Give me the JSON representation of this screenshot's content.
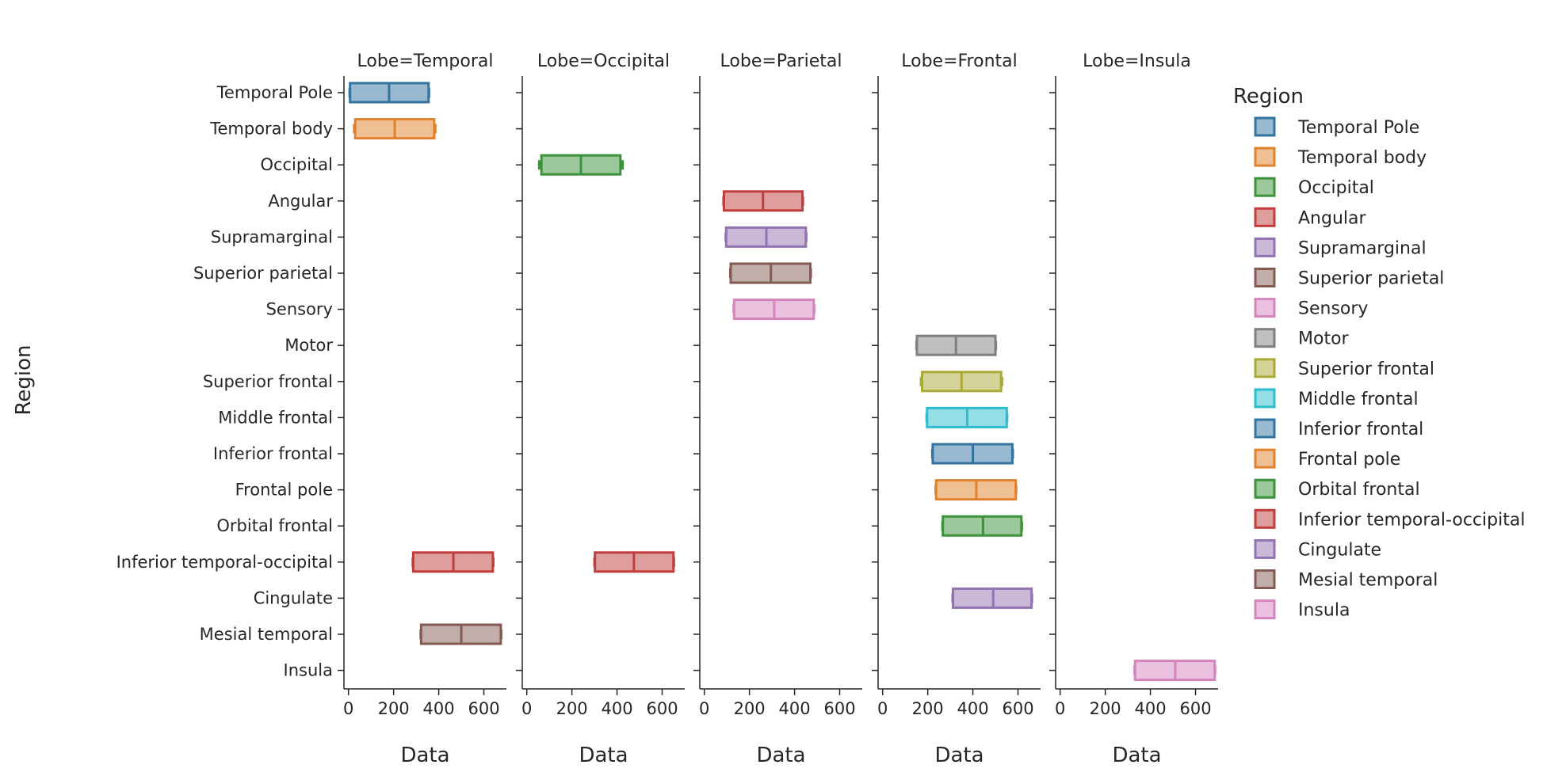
{
  "chart_data": {
    "type": "boxplot-faceted",
    "facet_prefix": "Lobe=",
    "xlabel": "Data",
    "ylabel": "Region",
    "xlim": [
      -20,
      700
    ],
    "xticks": [
      0,
      200,
      400,
      600
    ],
    "legend": {
      "title": "Region",
      "placement": "right"
    },
    "categories": [
      "Temporal Pole",
      "Temporal body",
      "Occipital",
      "Angular",
      "Supramarginal",
      "Superior parietal",
      "Sensory",
      "Motor",
      "Superior frontal ",
      "Middle frontal",
      "Inferior frontal",
      "Frontal pole",
      "Orbital frontal",
      "Inferior temporal-occipital ",
      "Cingulate",
      "Mesial temporal",
      "Insula"
    ],
    "legend_labels": [
      "Temporal Pole",
      "Temporal body",
      "Occipital",
      "Angular",
      "Supramarginal",
      "Superior parietal",
      "Sensory",
      "Motor",
      "Superior frontal",
      "Middle frontal",
      "Inferior frontal",
      "Frontal pole",
      "Orbital frontal",
      "Inferior temporal-occipital",
      "Cingulate",
      "Mesial temporal",
      "Insula"
    ],
    "colors": [
      "#3274a1",
      "#e1812c",
      "#3a923a",
      "#c03d3e",
      "#9372b2",
      "#845b53",
      "#d684bd",
      "#7f7f7f",
      "#a9aa35",
      "#2ebdcc",
      "#3274a1",
      "#e1812c",
      "#3a923a",
      "#c03d3e",
      "#9372b2",
      "#845b53",
      "#d684bd"
    ],
    "panels": [
      {
        "lobe": "Temporal",
        "boxes": [
          {
            "region": 0,
            "min": 5,
            "q1": 7,
            "median": 180,
            "q3": 355,
            "max": 357
          },
          {
            "region": 1,
            "min": 25,
            "q1": 30,
            "median": 205,
            "q3": 380,
            "max": 385
          },
          {
            "region": 13,
            "min": 285,
            "q1": 287,
            "median": 465,
            "q3": 640,
            "max": 642
          },
          {
            "region": 15,
            "min": 320,
            "q1": 322,
            "median": 500,
            "q3": 675,
            "max": 677
          }
        ]
      },
      {
        "lobe": "Occipital",
        "boxes": [
          {
            "region": 2,
            "min": 55,
            "q1": 65,
            "median": 240,
            "q3": 415,
            "max": 425
          },
          {
            "region": 13,
            "min": 300,
            "q1": 302,
            "median": 475,
            "q3": 650,
            "max": 652
          }
        ]
      },
      {
        "lobe": "Parietal",
        "boxes": [
          {
            "region": 3,
            "min": 85,
            "q1": 87,
            "median": 260,
            "q3": 435,
            "max": 437
          },
          {
            "region": 4,
            "min": 95,
            "q1": 97,
            "median": 275,
            "q3": 450,
            "max": 452
          },
          {
            "region": 5,
            "min": 115,
            "q1": 117,
            "median": 295,
            "q3": 470,
            "max": 472
          },
          {
            "region": 6,
            "min": 130,
            "q1": 132,
            "median": 310,
            "q3": 485,
            "max": 487
          }
        ]
      },
      {
        "lobe": "Frontal",
        "boxes": [
          {
            "region": 7,
            "min": 150,
            "q1": 152,
            "median": 325,
            "q3": 500,
            "max": 502
          },
          {
            "region": 8,
            "min": 170,
            "q1": 175,
            "median": 350,
            "q3": 525,
            "max": 530
          },
          {
            "region": 9,
            "min": 195,
            "q1": 197,
            "median": 375,
            "q3": 550,
            "max": 552
          },
          {
            "region": 10,
            "min": 220,
            "q1": 222,
            "median": 400,
            "q3": 575,
            "max": 577
          },
          {
            "region": 11,
            "min": 235,
            "q1": 237,
            "median": 415,
            "q3": 590,
            "max": 592
          },
          {
            "region": 12,
            "min": 265,
            "q1": 267,
            "median": 445,
            "q3": 615,
            "max": 617
          },
          {
            "region": 14,
            "min": 310,
            "q1": 312,
            "median": 490,
            "q3": 660,
            "max": 662
          }
        ]
      },
      {
        "lobe": "Insula",
        "boxes": [
          {
            "region": 16,
            "min": 330,
            "q1": 332,
            "median": 510,
            "q3": 685,
            "max": 687
          }
        ]
      }
    ]
  }
}
